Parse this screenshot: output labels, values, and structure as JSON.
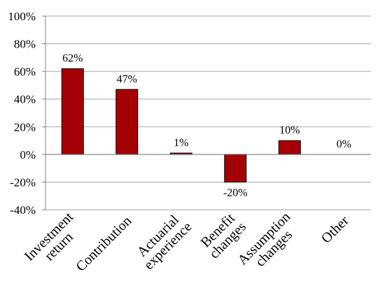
{
  "chart_data": {
    "type": "bar",
    "title": "",
    "xlabel": "",
    "ylabel": "",
    "categories": [
      [
        "Investment",
        "return"
      ],
      [
        "Contribution"
      ],
      [
        "Actuarial",
        "experience"
      ],
      [
        "Benefit",
        "changes"
      ],
      [
        "Assumption",
        "changes"
      ],
      [
        "Other"
      ]
    ],
    "values": [
      62,
      47,
      1,
      -20,
      10,
      0
    ],
    "data_labels": [
      "62%",
      "47%",
      "1%",
      "-20%",
      "10%",
      "0%"
    ],
    "ylim": [
      -40,
      100
    ],
    "yticks": [
      -40,
      -20,
      0,
      20,
      40,
      60,
      80,
      100
    ],
    "ytick_labels": [
      "-40%",
      "-20%",
      "0%",
      "20%",
      "40%",
      "60%",
      "80%",
      "100%"
    ],
    "grid": true,
    "legend": "none",
    "colors": {
      "bar": "#a50005",
      "bar_border": "#000000",
      "grid": "#a6a6a6"
    }
  }
}
